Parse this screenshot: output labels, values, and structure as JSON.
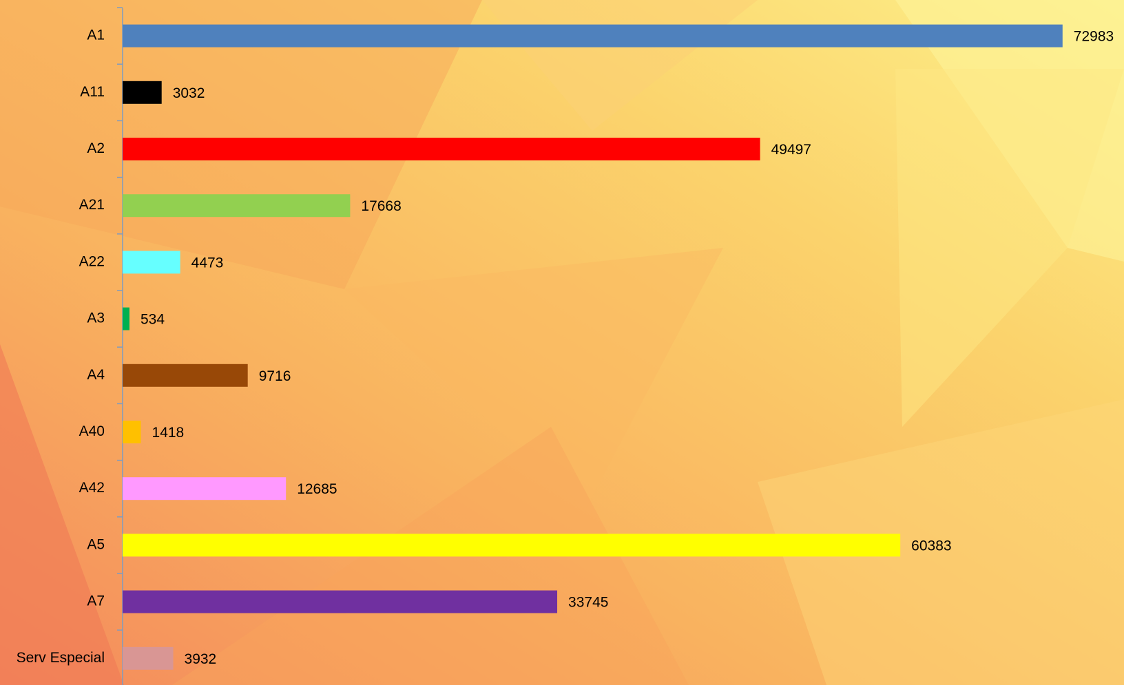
{
  "chart_data": {
    "type": "barh",
    "categories": [
      "A1",
      "A11",
      "A2",
      "A21",
      "A22",
      "A3",
      "A4",
      "A40",
      "A42",
      "A5",
      "A7",
      "Serv Especial"
    ],
    "values": [
      72983,
      3032,
      49497,
      17668,
      4473,
      534,
      9716,
      1418,
      12685,
      60383,
      33745,
      3932
    ],
    "colors": [
      "#4f81bd",
      "#000000",
      "#ff0000",
      "#92d050",
      "#66ffff",
      "#00b050",
      "#984807",
      "#ffc000",
      "#ff99ff",
      "#ffff00",
      "#7030a0",
      "#d99694"
    ],
    "xlim": [
      0,
      77700
    ]
  }
}
